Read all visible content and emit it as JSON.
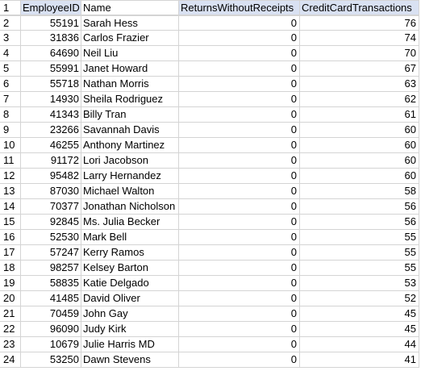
{
  "sheet": {
    "headers": {
      "row_number": "1",
      "employee_id": "EmployeeID",
      "name": "Name",
      "returns": "ReturnsWithoutReceipts",
      "credit": "CreditCardTransactions"
    },
    "rows": [
      {
        "rn": "2",
        "id": "55191",
        "name": "Sarah Hess",
        "returns": "0",
        "credit": "76"
      },
      {
        "rn": "3",
        "id": "31836",
        "name": "Carlos Frazier",
        "returns": "0",
        "credit": "74"
      },
      {
        "rn": "4",
        "id": "64690",
        "name": "Neil Liu",
        "returns": "0",
        "credit": "70"
      },
      {
        "rn": "5",
        "id": "55991",
        "name": "Janet Howard",
        "returns": "0",
        "credit": "67"
      },
      {
        "rn": "6",
        "id": "55718",
        "name": "Nathan Morris",
        "returns": "0",
        "credit": "63"
      },
      {
        "rn": "7",
        "id": "14930",
        "name": "Sheila Rodriguez",
        "returns": "0",
        "credit": "62"
      },
      {
        "rn": "8",
        "id": "41343",
        "name": "Billy Tran",
        "returns": "0",
        "credit": "61"
      },
      {
        "rn": "9",
        "id": "23266",
        "name": "Savannah Davis",
        "returns": "0",
        "credit": "60"
      },
      {
        "rn": "10",
        "id": "46255",
        "name": "Anthony Martinez",
        "returns": "0",
        "credit": "60"
      },
      {
        "rn": "11",
        "id": "91172",
        "name": "Lori Jacobson",
        "returns": "0",
        "credit": "60"
      },
      {
        "rn": "12",
        "id": "95482",
        "name": "Larry Hernandez",
        "returns": "0",
        "credit": "60"
      },
      {
        "rn": "13",
        "id": "87030",
        "name": "Michael Walton",
        "returns": "0",
        "credit": "58"
      },
      {
        "rn": "14",
        "id": "70377",
        "name": "Jonathan Nicholson",
        "returns": "0",
        "credit": "56"
      },
      {
        "rn": "15",
        "id": "92845",
        "name": "Ms. Julia Becker",
        "returns": "0",
        "credit": "56"
      },
      {
        "rn": "16",
        "id": "52530",
        "name": "Mark Bell",
        "returns": "0",
        "credit": "55"
      },
      {
        "rn": "17",
        "id": "57247",
        "name": "Kerry Ramos",
        "returns": "0",
        "credit": "55"
      },
      {
        "rn": "18",
        "id": "98257",
        "name": "Kelsey Barton",
        "returns": "0",
        "credit": "55"
      },
      {
        "rn": "19",
        "id": "58835",
        "name": "Katie Delgado",
        "returns": "0",
        "credit": "53"
      },
      {
        "rn": "20",
        "id": "41485",
        "name": "David Oliver",
        "returns": "0",
        "credit": "52"
      },
      {
        "rn": "21",
        "id": "70459",
        "name": "John Gay",
        "returns": "0",
        "credit": "45"
      },
      {
        "rn": "22",
        "id": "96090",
        "name": "Judy Kirk",
        "returns": "0",
        "credit": "45"
      },
      {
        "rn": "23",
        "id": "10679",
        "name": "Julie Harris MD",
        "returns": "0",
        "credit": "44"
      },
      {
        "rn": "24",
        "id": "53250",
        "name": "Dawn Stevens",
        "returns": "0",
        "credit": "41"
      }
    ]
  },
  "colors": {
    "header_fill": "#d9e1f2",
    "gridline": "#d4d4d4"
  }
}
